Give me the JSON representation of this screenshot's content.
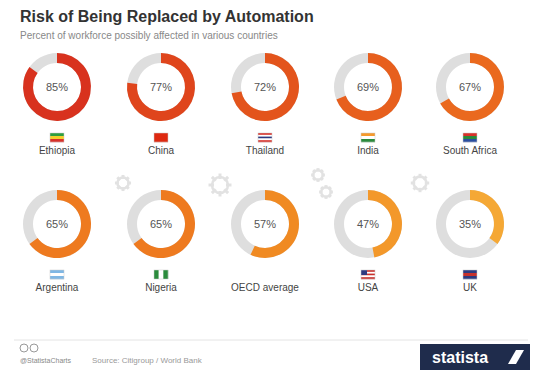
{
  "chart_data": {
    "type": "donut",
    "title": "Risk of Being Replaced by Automation",
    "subtitle": "Percent of workforce possibly affected in various countries",
    "categories": [
      "Ethiopia",
      "China",
      "Thailand",
      "India",
      "South Africa",
      "Argentina",
      "Nigeria",
      "OECD average",
      "USA",
      "UK"
    ],
    "values": [
      85,
      77,
      72,
      69,
      67,
      65,
      65,
      57,
      47,
      35
    ],
    "value_labels": [
      "85%",
      "77%",
      "72%",
      "69%",
      "67%",
      "65%",
      "65%",
      "57%",
      "47%",
      "35%"
    ],
    "colors": [
      "#d8321e",
      "#df451c",
      "#e3541c",
      "#e75f1d",
      "#ea691e",
      "#ee7a1f",
      "#ee7a1f",
      "#f08a22",
      "#f3982a",
      "#f5a835"
    ],
    "ylim": [
      0,
      100
    ],
    "data_labels": true,
    "source": "Source: Citigroup / World Bank",
    "credit": "@StatistaCharts",
    "logo_text": "statista"
  }
}
